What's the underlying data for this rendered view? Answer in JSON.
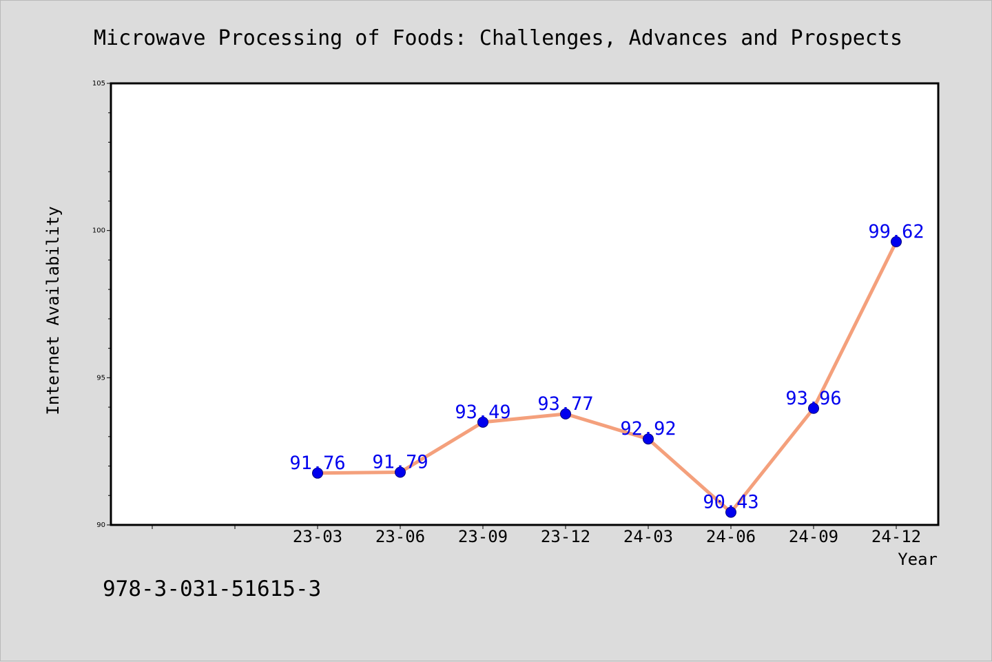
{
  "chart_data": {
    "type": "line",
    "title": "Microwave Processing of Foods: Challenges, Advances and Prospects",
    "xlabel": "Year",
    "ylabel": "Internet Availability",
    "categories": [
      "23-03",
      "23-06",
      "23-09",
      "23-12",
      "24-03",
      "24-06",
      "24-09",
      "24-12"
    ],
    "series": [
      {
        "values": [
          91.76,
          91.79,
          93.49,
          93.77,
          92.92,
          90.43,
          93.96,
          99.62
        ]
      }
    ],
    "data_labels": [
      "91.76",
      "91.79",
      "93.49",
      "93.77",
      "92.92",
      "90.43",
      "93.96",
      "99.62"
    ],
    "ylim": [
      90,
      105
    ],
    "yticks": [
      "90",
      "95",
      "100",
      "105"
    ],
    "grid": false,
    "line_color": "#f4a07c",
    "marker_color": "#0000ee",
    "label_color": "#0000ee"
  },
  "footnote": "978-3-031-51615-3"
}
